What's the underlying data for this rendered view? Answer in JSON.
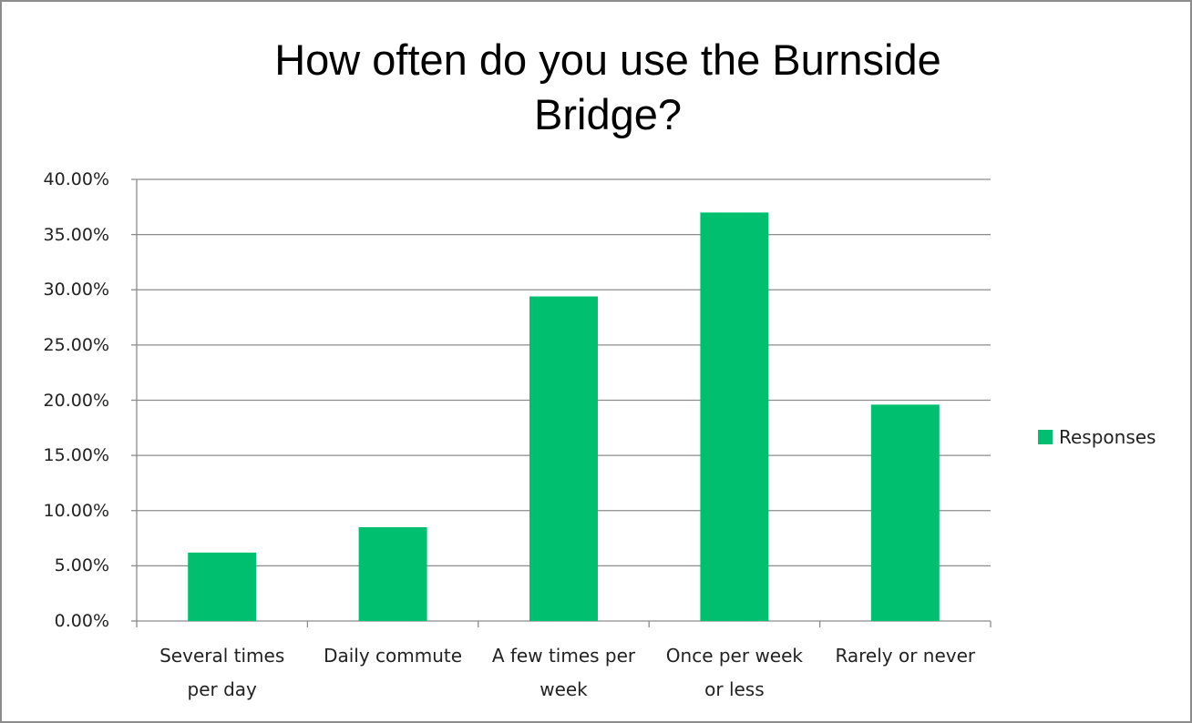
{
  "chart_data": {
    "type": "bar",
    "title": "How often do you use the Burnside Bridge?",
    "categories": [
      "Several times per day",
      "Daily commute",
      "A few times per week",
      "Once per week or less",
      "Rarely or never"
    ],
    "series": [
      {
        "name": "Responses",
        "color": "#00BF6F",
        "values": [
          6.2,
          8.5,
          29.4,
          37.0,
          19.6
        ]
      }
    ],
    "ylim": [
      0,
      40
    ],
    "yticks": [
      {
        "value": 0,
        "label": "0.00%"
      },
      {
        "value": 5,
        "label": "5.00%"
      },
      {
        "value": 10,
        "label": "10.00%"
      },
      {
        "value": 15,
        "label": "15.00%"
      },
      {
        "value": 20,
        "label": "20.00%"
      },
      {
        "value": 25,
        "label": "25.00%"
      },
      {
        "value": 30,
        "label": "30.00%"
      },
      {
        "value": 35,
        "label": "35.00%"
      },
      {
        "value": 40,
        "label": "40.00%"
      }
    ],
    "grid": true,
    "legend": "right"
  }
}
